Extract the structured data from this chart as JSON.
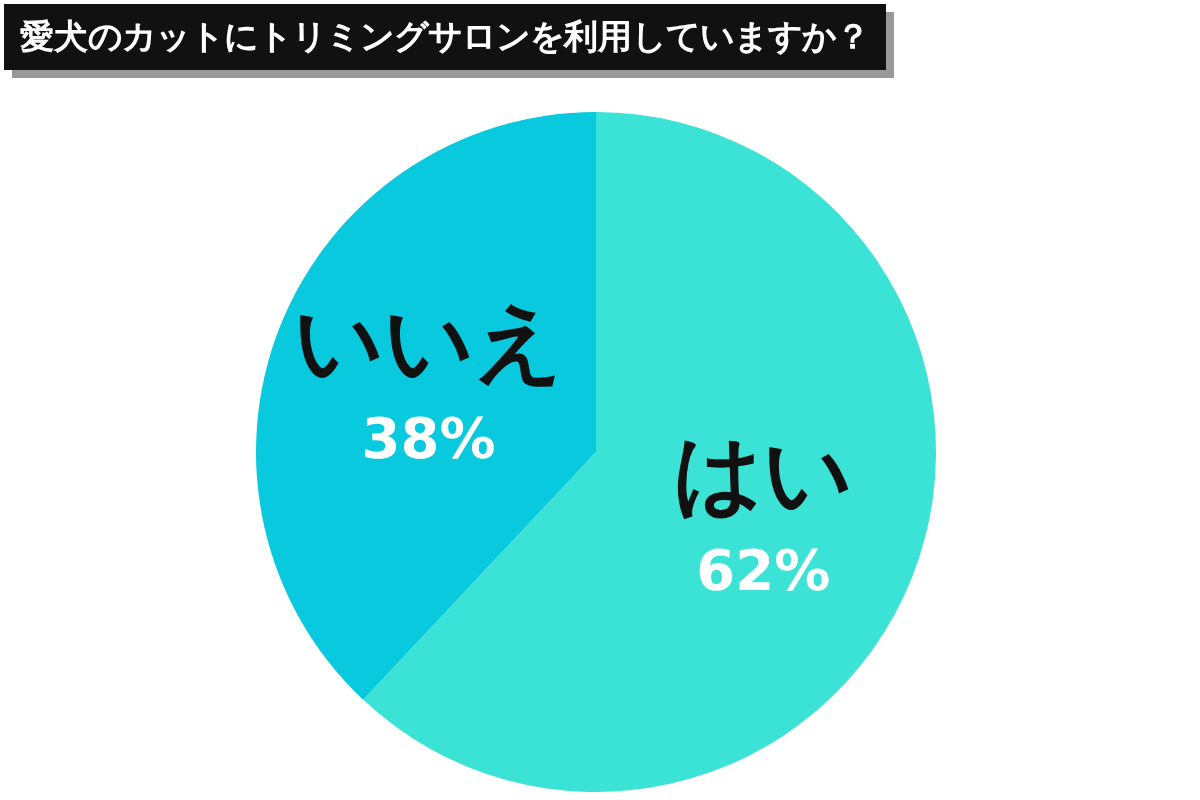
{
  "chart_data": {
    "type": "pie",
    "title": "愛犬のカットにトリミングサロンを利用していますか？",
    "categories": [
      "はい",
      "いいえ"
    ],
    "values": [
      62,
      38
    ],
    "value_labels": [
      "62%",
      "38%"
    ],
    "colors": [
      "#3be3d6",
      "#08c9de"
    ]
  }
}
